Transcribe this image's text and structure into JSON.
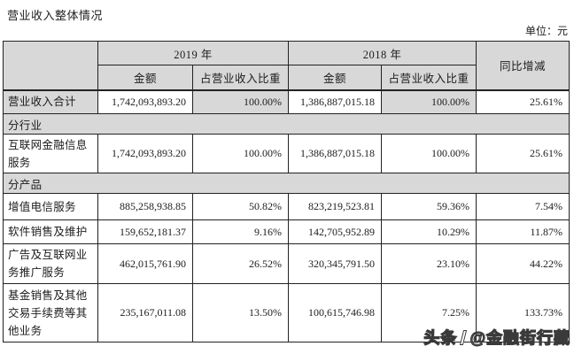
{
  "page": {
    "title": "营业收入整体情况",
    "unit": "单位：元"
  },
  "colors": {
    "header_bg": "#d8d8d8",
    "border": "#222222",
    "page_bg": "#ffffff"
  },
  "table": {
    "header": {
      "year_2019": "2019 年",
      "year_2018": "2018 年",
      "yoy": "同比增减",
      "amount": "金额",
      "ratio": "占营业收入比重"
    },
    "rows": [
      {
        "type": "data",
        "label": "营业收入合计",
        "amount_2019": "1,742,093,893.20",
        "ratio_2019": "100.00%",
        "amount_2018": "1,386,887,015.18",
        "ratio_2018": "100.00%",
        "yoy": "25.61%"
      },
      {
        "type": "section",
        "label": "分行业"
      },
      {
        "type": "data",
        "label": "互联网金融信息服务",
        "amount_2019": "1,742,093,893.20",
        "ratio_2019": "100.00%",
        "amount_2018": "1,386,887,015.18",
        "ratio_2018": "100.00%",
        "yoy": "25.61%"
      },
      {
        "type": "section",
        "label": "分产品"
      },
      {
        "type": "data",
        "label": "增值电信服务",
        "amount_2019": "885,258,938.85",
        "ratio_2019": "50.82%",
        "amount_2018": "823,219,523.81",
        "ratio_2018": "59.36%",
        "yoy": "7.54%"
      },
      {
        "type": "data",
        "label": "软件销售及维护",
        "amount_2019": "159,652,181.37",
        "ratio_2019": "9.16%",
        "amount_2018": "142,705,952.89",
        "ratio_2018": "10.29%",
        "yoy": "11.87%"
      },
      {
        "type": "data",
        "label": "广告及互联网业务推广服务",
        "amount_2019": "462,015,761.90",
        "ratio_2019": "26.52%",
        "amount_2018": "320,345,791.50",
        "ratio_2018": "23.10%",
        "yoy": "44.22%"
      },
      {
        "type": "data",
        "label": "基金销售及其他交易手续费等其他业务",
        "amount_2019": "235,167,011.08",
        "ratio_2019": "13.50%",
        "amount_2018": "100,615,746.98",
        "ratio_2018": "7.25%",
        "yoy": "133.73%"
      }
    ]
  },
  "watermark": {
    "brand": "头条",
    "handle": "@金融街行藏"
  }
}
